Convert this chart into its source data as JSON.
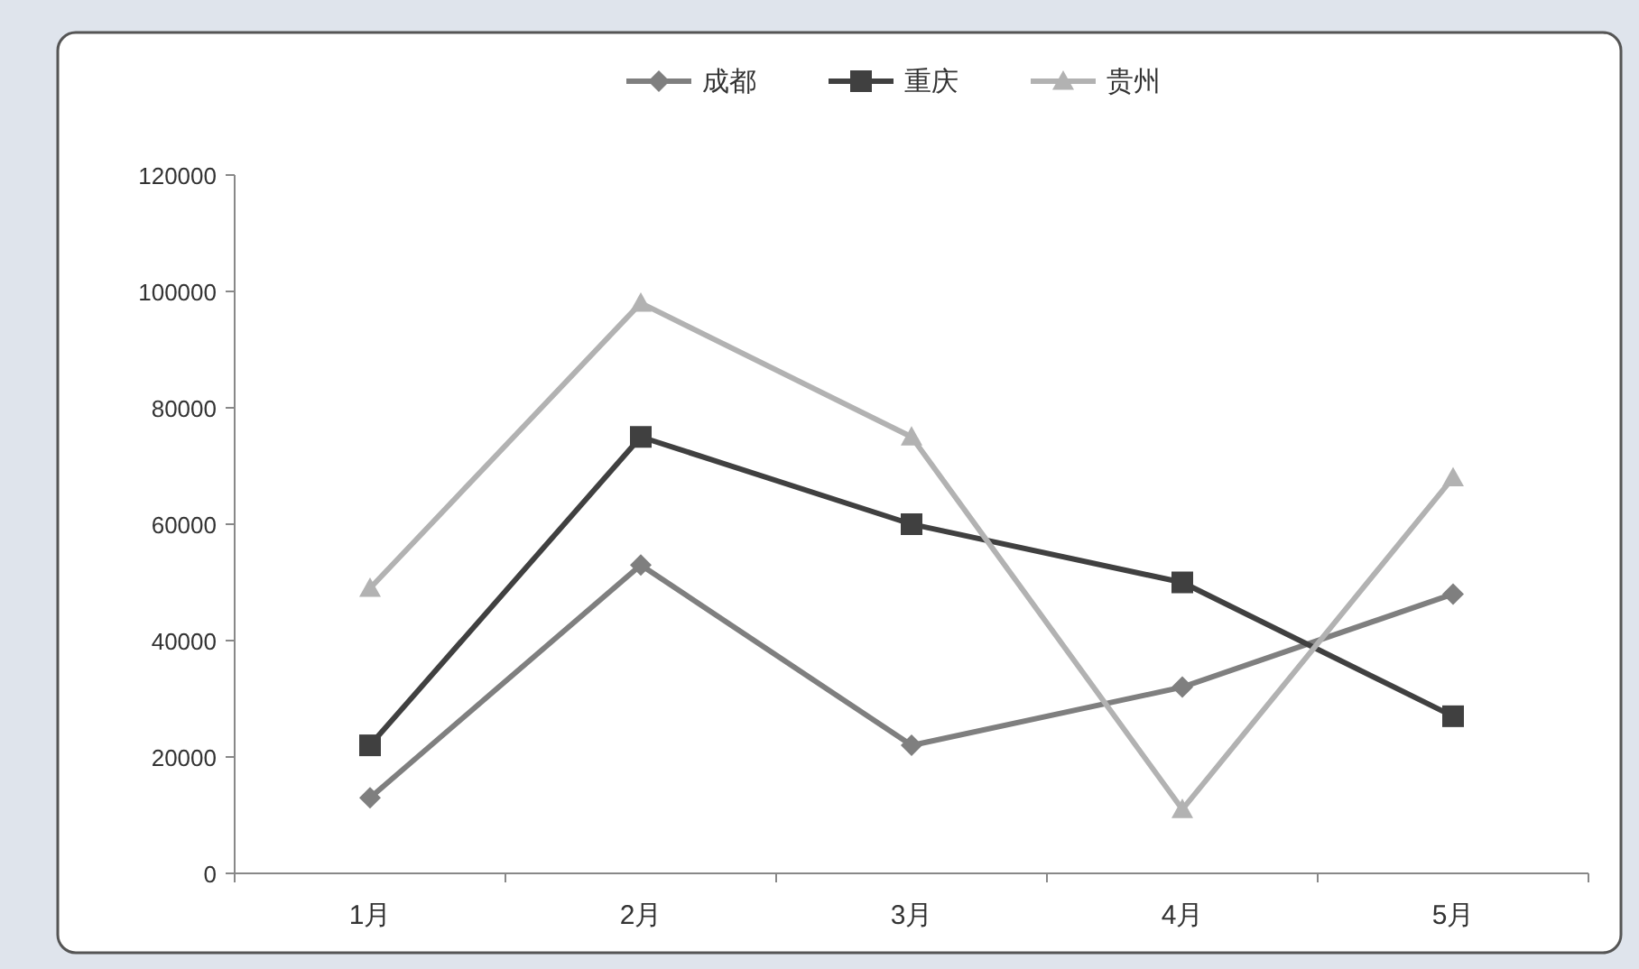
{
  "chart_data": {
    "type": "line",
    "categories": [
      "1月",
      "2月",
      "3月",
      "4月",
      "5月"
    ],
    "series": [
      {
        "name": "成都",
        "color": "#7f7f7f",
        "marker": "diamond",
        "values": [
          13000,
          53000,
          22000,
          32000,
          48000
        ]
      },
      {
        "name": "重庆",
        "color": "#404040",
        "marker": "square",
        "values": [
          22000,
          75000,
          60000,
          50000,
          27000
        ]
      },
      {
        "name": "贵州",
        "color": "#b2b2b2",
        "marker": "triangle",
        "values": [
          49000,
          98000,
          75000,
          11000,
          68000
        ]
      }
    ],
    "ylim": [
      0,
      120000
    ],
    "yticks": [
      0,
      20000,
      40000,
      60000,
      80000,
      100000,
      120000
    ],
    "grid": false,
    "legend": "top",
    "line_style": "solid"
  }
}
